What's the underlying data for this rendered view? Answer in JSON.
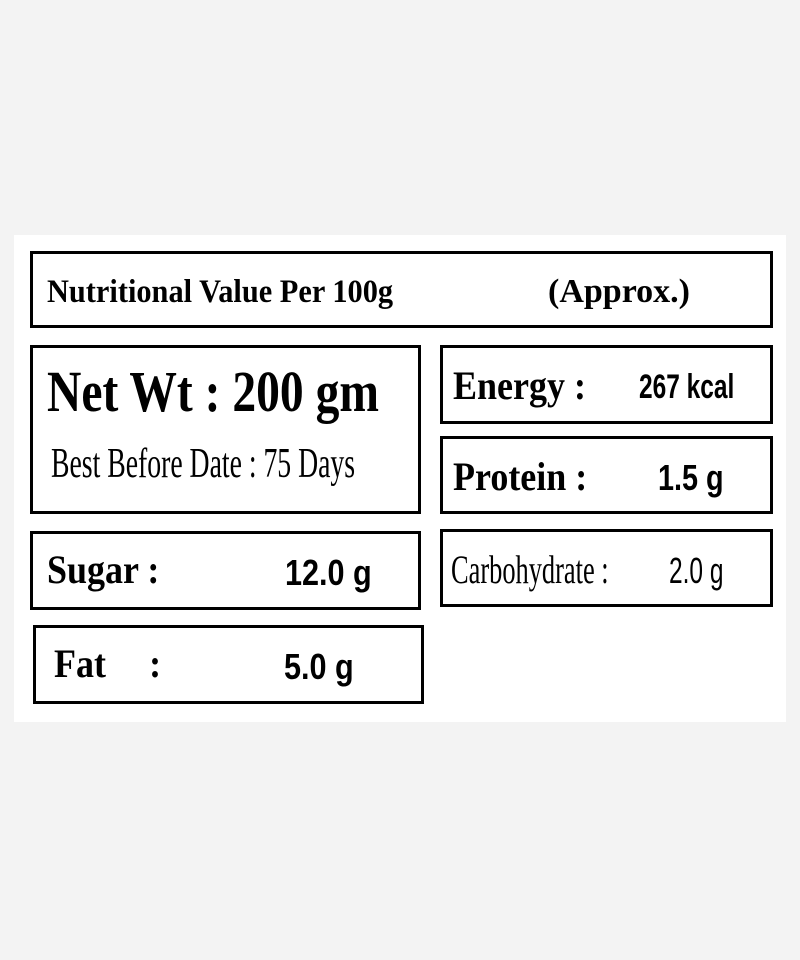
{
  "label": {
    "title": "Nutritional Value Per 100g",
    "title_note": "(Approx.)",
    "net_weight": "Net Wt : 200 gm",
    "best_before": "Best Before Date : 75 Days",
    "items": [
      {
        "name": "Energy :",
        "value": "267 kcal"
      },
      {
        "name": "Protein :",
        "value": "1.5 g"
      },
      {
        "name": "Carbohydrate :",
        "value": "2.0 g"
      },
      {
        "name": "Sugar :",
        "value": "12.0 g"
      },
      {
        "name": "Fat :",
        "value": "5.0 g"
      }
    ]
  }
}
